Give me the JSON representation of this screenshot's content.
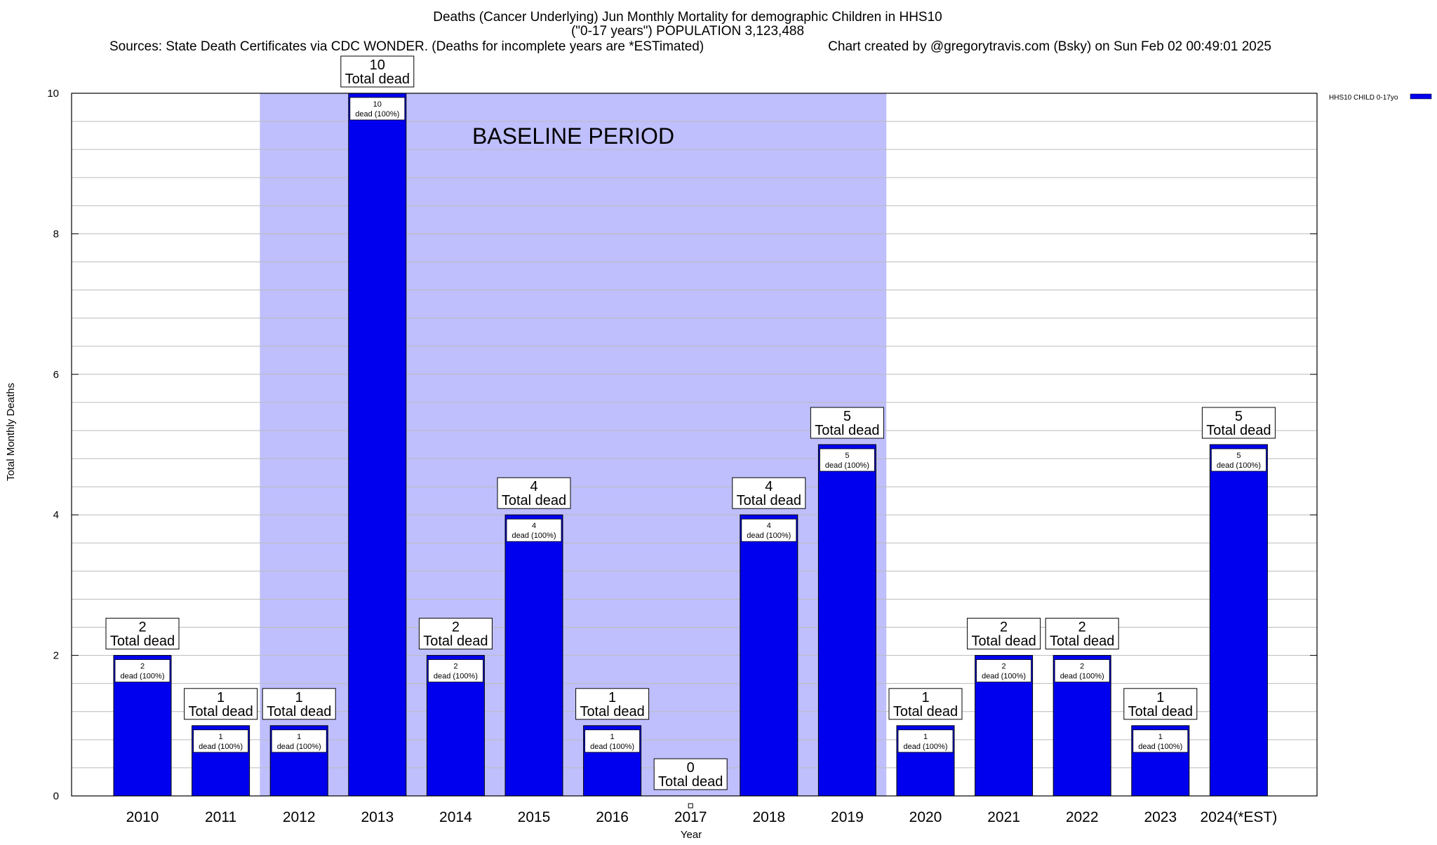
{
  "chart_data": {
    "type": "bar",
    "title_lines": [
      "Deaths (Cancer Underlying) Jun Monthly Mortality for demographic Children in HHS10",
      "(\"0-17 years\") POPULATION 3,123,488"
    ],
    "sources": "Sources: State Death Certificates via CDC WONDER. (Deaths for incomplete years are *ESTimated)",
    "credit": "Chart created by @gregorytravis.com (Bsky) on Sun Feb 02 00:49:01 2025",
    "xlabel": "Year",
    "ylabel": "Total Monthly Deaths",
    "ylim": [
      0,
      10
    ],
    "yticks": [
      "0",
      "2",
      "4",
      "6",
      "8",
      "10"
    ],
    "grid": true,
    "categories": [
      "2010",
      "2011",
      "2012",
      "2013",
      "2014",
      "2015",
      "2016",
      "2017",
      "2018",
      "2019",
      "2020",
      "2021",
      "2022",
      "2023",
      "2024(*EST)"
    ],
    "series": [
      {
        "name": "HHS10 CHILD 0-17yo",
        "color": "#0000ee",
        "values": [
          2,
          1,
          1,
          10,
          2,
          4,
          1,
          0,
          4,
          5,
          1,
          2,
          2,
          1,
          5
        ]
      }
    ],
    "total_label_values": [
      "2",
      "1",
      "1",
      "10",
      "2",
      "4",
      "1",
      "0",
      "4",
      "5",
      "1",
      "2",
      "2",
      "1",
      "5"
    ],
    "total_label_suffix": "Total dead",
    "inner_label_values": [
      "2",
      "1",
      "1",
      "10",
      "2",
      "4",
      "1",
      "",
      "4",
      "5",
      "1",
      "2",
      "2",
      "1",
      "5"
    ],
    "inner_label_suffix": "dead (100%)",
    "baseline": {
      "label": "BASELINE PERIOD",
      "start_category": "2012",
      "end_category": "2019",
      "color": "#bfbffd"
    },
    "legend": {
      "label": "HHS10 CHILD 0-17yo",
      "position": "top-right",
      "color": "#0000ee"
    }
  }
}
